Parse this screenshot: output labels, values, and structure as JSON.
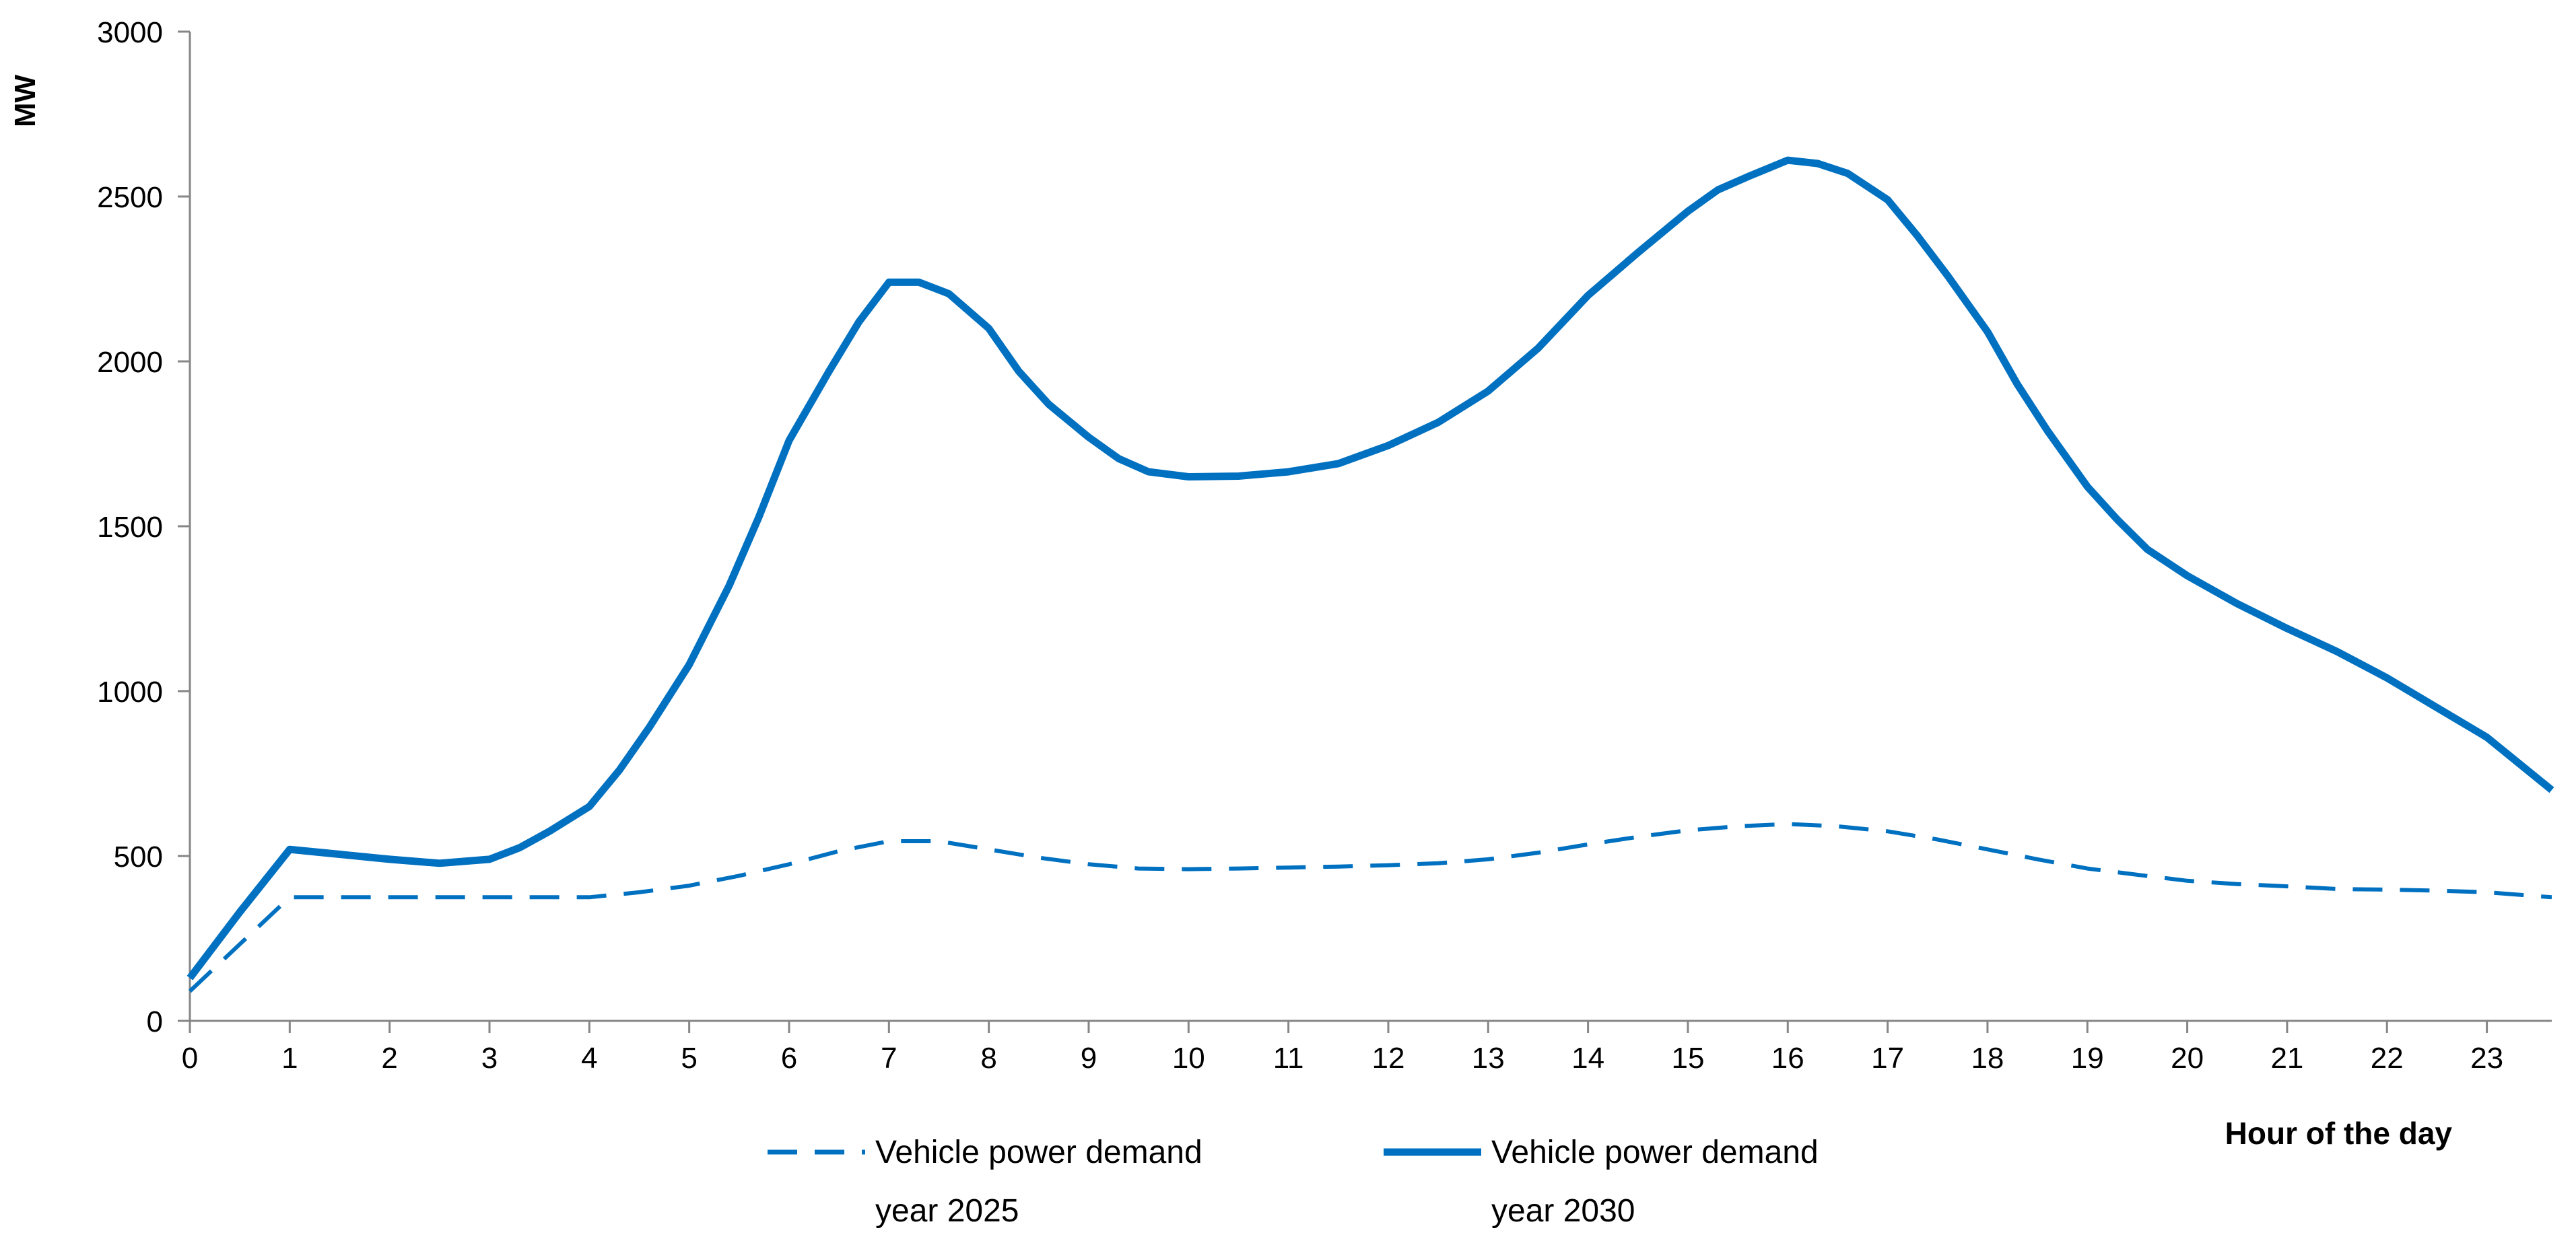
{
  "chart_data": {
    "type": "line",
    "title": "",
    "ylabel": "MW",
    "xlabel": "Hour of the day",
    "xlim": [
      0,
      23.65
    ],
    "ylim": [
      0,
      3000
    ],
    "yticks": [
      0,
      500,
      1000,
      1500,
      2000,
      2500,
      3000
    ],
    "xticks": [
      0,
      1,
      2,
      3,
      4,
      5,
      6,
      7,
      8,
      9,
      10,
      11,
      12,
      13,
      14,
      15,
      16,
      17,
      18,
      19,
      20,
      21,
      22,
      23
    ],
    "grid": false,
    "legend_position": "bottom",
    "series": [
      {
        "name_line1": "Vehicle power demand",
        "name_line2": "year 2025",
        "style": "dashed",
        "color": "#0070C0",
        "x": [
          0,
          1,
          2,
          3,
          4,
          4.5,
          5,
          5.5,
          6,
          6.5,
          7,
          7.5,
          8,
          8.5,
          9,
          9.5,
          10,
          10.5,
          11,
          11.5,
          12,
          12.5,
          13,
          13.5,
          14,
          14.5,
          15,
          15.5,
          16,
          16.5,
          17,
          17.5,
          18,
          18.5,
          19,
          19.5,
          20,
          20.5,
          21,
          21.5,
          22,
          22.5,
          23,
          23.65
        ],
        "y": [
          90,
          375,
          375,
          375,
          375,
          390,
          410,
          440,
          475,
          515,
          545,
          545,
          520,
          495,
          475,
          462,
          460,
          462,
          465,
          468,
          472,
          478,
          490,
          510,
          535,
          558,
          578,
          590,
          597,
          590,
          575,
          550,
          520,
          490,
          462,
          443,
          425,
          415,
          408,
          400,
          398,
          395,
          390,
          375
        ]
      },
      {
        "name_line1": "Vehicle power demand",
        "name_line2": "year 2030",
        "style": "solid",
        "color": "#0070C0",
        "x": [
          0,
          0.5,
          1,
          1.5,
          2,
          2.5,
          3,
          3.3,
          3.6,
          4,
          4.3,
          4.6,
          5,
          5.4,
          5.7,
          6,
          6.4,
          6.7,
          7,
          7.3,
          7.6,
          8,
          8.3,
          8.6,
          9,
          9.3,
          9.6,
          10,
          10.5,
          11,
          11.5,
          12,
          12.5,
          13,
          13.5,
          14,
          14.5,
          15,
          15.3,
          15.6,
          16,
          16.3,
          16.6,
          17,
          17.3,
          17.6,
          18,
          18.3,
          18.6,
          19,
          19.3,
          19.6,
          20,
          20.5,
          21,
          21.5,
          22,
          22.5,
          23,
          23.65
        ],
        "y": [
          130,
          330,
          520,
          505,
          490,
          478,
          490,
          525,
          575,
          650,
          760,
          890,
          1080,
          1320,
          1530,
          1760,
          1970,
          2120,
          2240,
          2240,
          2205,
          2100,
          1970,
          1870,
          1770,
          1705,
          1665,
          1650,
          1652,
          1665,
          1690,
          1745,
          1815,
          1910,
          2040,
          2200,
          2330,
          2455,
          2520,
          2560,
          2610,
          2600,
          2570,
          2490,
          2380,
          2260,
          2090,
          1930,
          1790,
          1620,
          1520,
          1430,
          1350,
          1265,
          1190,
          1120,
          1040,
          950,
          860,
          700
        ]
      }
    ]
  }
}
